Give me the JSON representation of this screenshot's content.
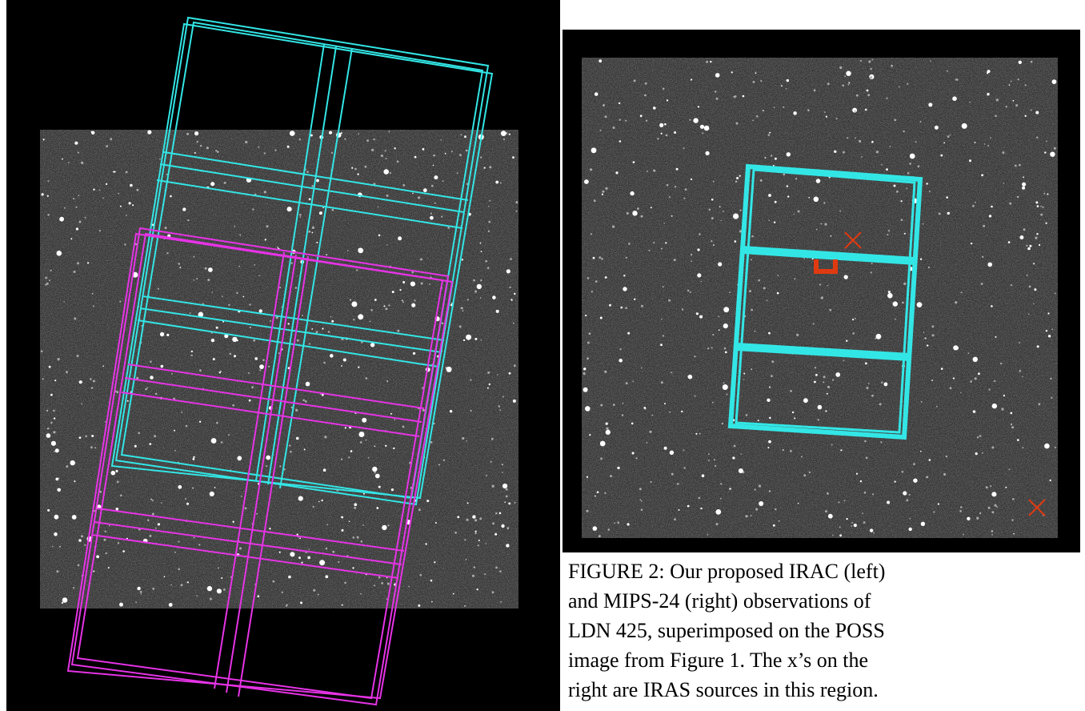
{
  "caption": {
    "lines": [
      "FIGURE 2: Our proposed IRAC (left)",
      "and MIPS-24 (right) observations of",
      "LDN 425, superimposed on the POSS",
      "image from Figure 1.  The x’s on the",
      "right are IRAS sources in this region."
    ]
  }
}
